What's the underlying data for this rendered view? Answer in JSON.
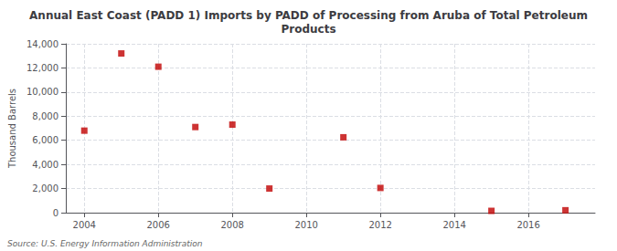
{
  "chart_data": {
    "type": "scatter",
    "title": "Annual East Coast (PADD 1) Imports by PADD of Processing from Aruba of Total Petroleum\nProducts",
    "ylabel": "Thousand Barrels",
    "annotation": "Source: U.S. Energy Information Administration",
    "x": [
      2004,
      2005,
      2006,
      2007,
      2008,
      2009,
      2011,
      2012,
      2015,
      2017
    ],
    "values": [
      6800,
      13200,
      12100,
      7100,
      7300,
      2000,
      6250,
      2050,
      150,
      200
    ],
    "color": "#c00000",
    "marker": "square",
    "xlim": [
      2003.5,
      2017.8
    ],
    "xticks": [
      2004,
      2006,
      2008,
      2010,
      2012,
      2014,
      2016
    ],
    "ylim": [
      0,
      14000
    ],
    "yticks": [
      0,
      {
        "value": 2000,
        "label": "2,000"
      },
      {
        "value": 4000,
        "label": "4,000"
      },
      {
        "value": 6000,
        "label": "6,000"
      },
      {
        "value": 8000,
        "label": "8,000"
      },
      {
        "value": 10000,
        "label": "10,000"
      },
      {
        "value": 12000,
        "label": "12,000"
      },
      {
        "value": 14000,
        "label": "14,000"
      }
    ],
    "grid": true
  }
}
